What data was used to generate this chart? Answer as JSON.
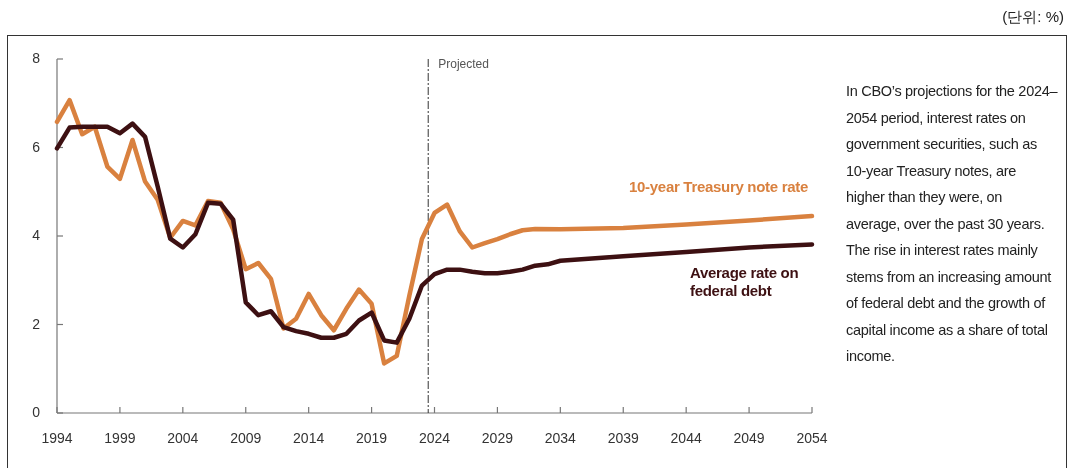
{
  "chart_data": {
    "type": "line",
    "xlim": [
      1994,
      2054
    ],
    "xticks": [
      1994,
      1999,
      2004,
      2009,
      2014,
      2019,
      2024,
      2029,
      2034,
      2039,
      2044,
      2049,
      2054
    ],
    "ylim": [
      0,
      8
    ],
    "yticks": [
      0,
      2,
      4,
      6,
      8
    ],
    "grid": false,
    "legend": false,
    "marker": "none",
    "line_style": "solid",
    "series": [
      {
        "name": "10-year Treasury note rate",
        "color": "#d9813f",
        "x": [
          1994,
          1995,
          1996,
          1997,
          1998,
          1999,
          2000,
          2001,
          2002,
          2003,
          2004,
          2005,
          2006,
          2007,
          2008,
          2009,
          2010,
          2011,
          2012,
          2013,
          2014,
          2015,
          2016,
          2017,
          2018,
          2019,
          2020,
          2021,
          2022,
          2023,
          2024,
          2025,
          2026,
          2027,
          2028,
          2029,
          2030,
          2031,
          2032,
          2034,
          2039,
          2044,
          2049,
          2054
        ],
        "values": [
          6.58,
          7.07,
          6.3,
          6.47,
          5.57,
          5.29,
          6.17,
          5.23,
          4.82,
          3.96,
          4.34,
          4.24,
          4.79,
          4.75,
          4.15,
          3.25,
          3.39,
          3.03,
          1.91,
          2.13,
          2.69,
          2.21,
          1.87,
          2.36,
          2.79,
          2.47,
          1.12,
          1.29,
          2.65,
          3.93,
          4.52,
          4.71,
          4.11,
          3.74,
          3.84,
          3.93,
          4.04,
          4.13,
          4.16,
          4.15,
          4.18,
          4.26,
          4.35,
          4.45
        ]
      },
      {
        "name": "Average rate on federal debt",
        "color": "#3d1012",
        "x": [
          1994,
          1995,
          1996,
          1997,
          1998,
          1999,
          2000,
          2001,
          2002,
          2003,
          2004,
          2005,
          2006,
          2007,
          2008,
          2009,
          2010,
          2011,
          2012,
          2013,
          2014,
          2015,
          2016,
          2017,
          2018,
          2019,
          2020,
          2021,
          2022,
          2023,
          2024,
          2025,
          2026,
          2027,
          2028,
          2029,
          2030,
          2031,
          2032,
          2033,
          2034,
          2039,
          2044,
          2049,
          2054
        ],
        "values": [
          5.98,
          6.45,
          6.47,
          6.47,
          6.47,
          6.32,
          6.54,
          6.24,
          5.12,
          3.94,
          3.74,
          4.04,
          4.75,
          4.73,
          4.37,
          2.5,
          2.21,
          2.3,
          1.94,
          1.85,
          1.79,
          1.7,
          1.7,
          1.79,
          2.09,
          2.27,
          1.64,
          1.59,
          2.13,
          2.88,
          3.14,
          3.24,
          3.24,
          3.19,
          3.16,
          3.16,
          3.19,
          3.24,
          3.33,
          3.36,
          3.44,
          3.54,
          3.64,
          3.74,
          3.81
        ]
      }
    ],
    "ref_lines": [
      {
        "axis": "x",
        "value": 2023.5,
        "label": "Projected",
        "line_style": "dashed"
      }
    ],
    "annotations": [
      "(단위: %)",
      "In CBO’s projections for the 2024–2054 period, interest rates on government securities, such as 10-year Treasury notes, are higher than they were, on average, over the past 30 years. The rise in interest rates mainly stems from an increasing amount of federal debt and the growth of capital income as a share of total income."
    ]
  }
}
